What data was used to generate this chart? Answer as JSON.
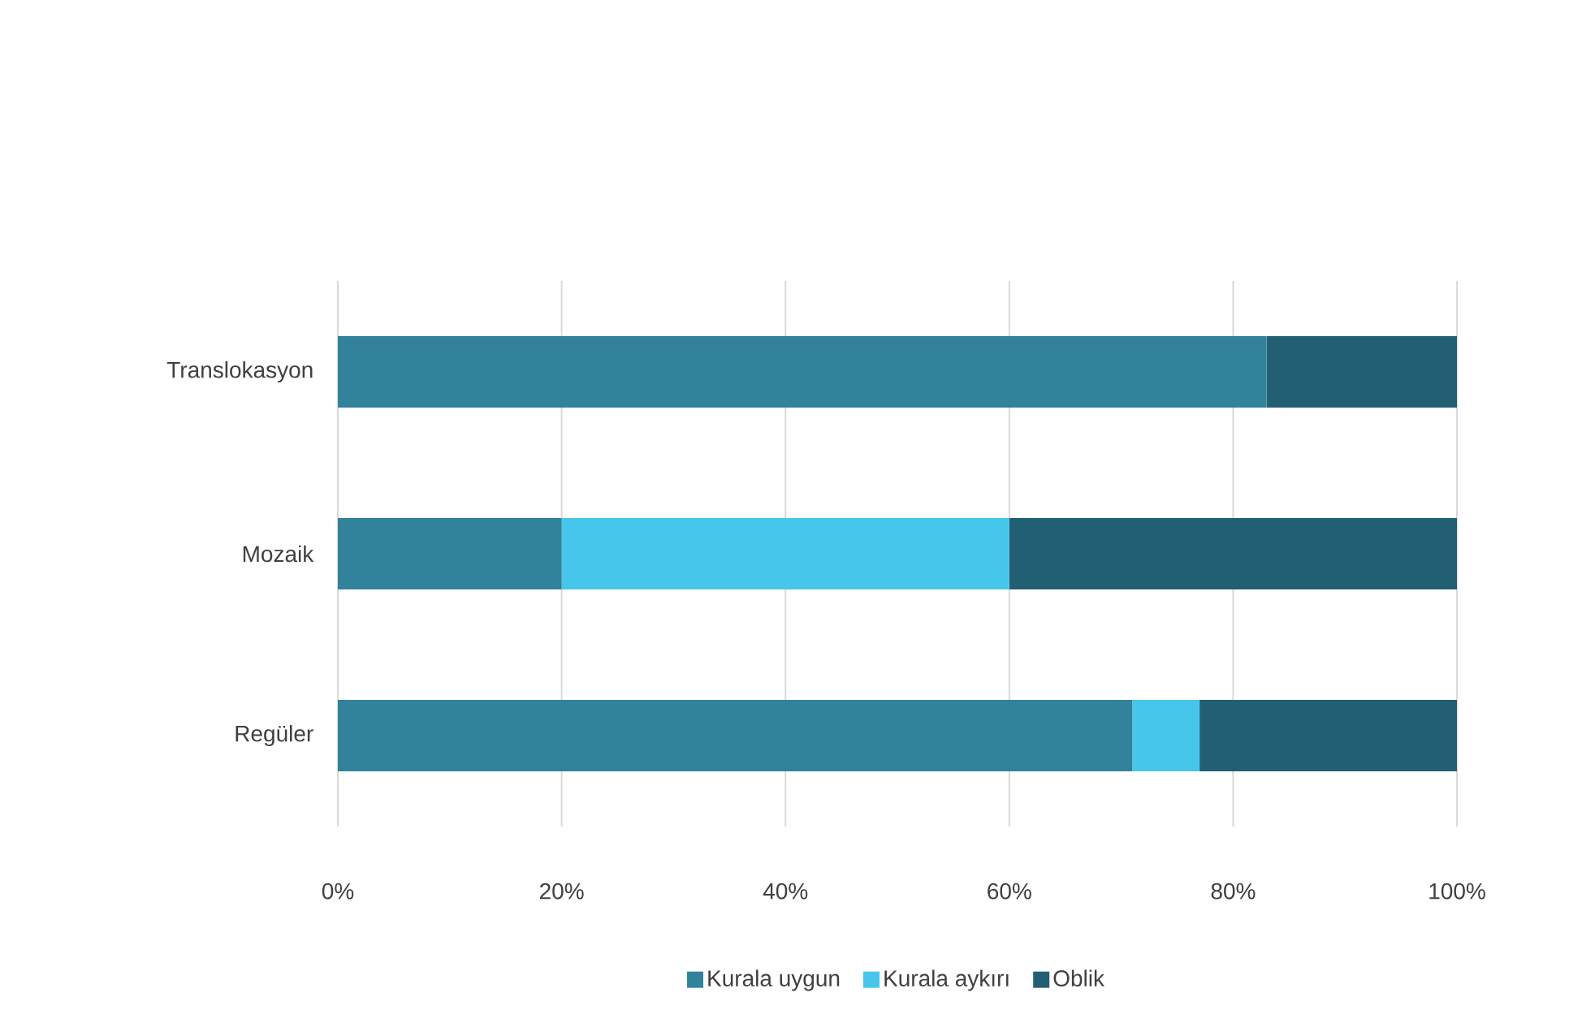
{
  "chart_data": {
    "type": "bar",
    "orientation": "horizontal",
    "stacked": true,
    "categories": [
      "Translokasyon",
      "Mozaik",
      "Regüler"
    ],
    "series": [
      {
        "name": "Kurala uygun",
        "color": "#31829a",
        "values": [
          83,
          20,
          71
        ]
      },
      {
        "name": "Kurala aykırı",
        "color": "#47c6ec",
        "values": [
          0,
          40,
          6
        ]
      },
      {
        "name": "Oblik",
        "color": "#235f73",
        "values": [
          17,
          40,
          23
        ]
      }
    ],
    "xlim": [
      0,
      100
    ],
    "xticks": [
      {
        "value": 0,
        "label": "0%"
      },
      {
        "value": 20,
        "label": "20%"
      },
      {
        "value": 40,
        "label": "40%"
      },
      {
        "value": 60,
        "label": "60%"
      },
      {
        "value": 80,
        "label": "80%"
      },
      {
        "value": 100,
        "label": "100%"
      }
    ],
    "grid": "x",
    "legend": "bottom"
  }
}
